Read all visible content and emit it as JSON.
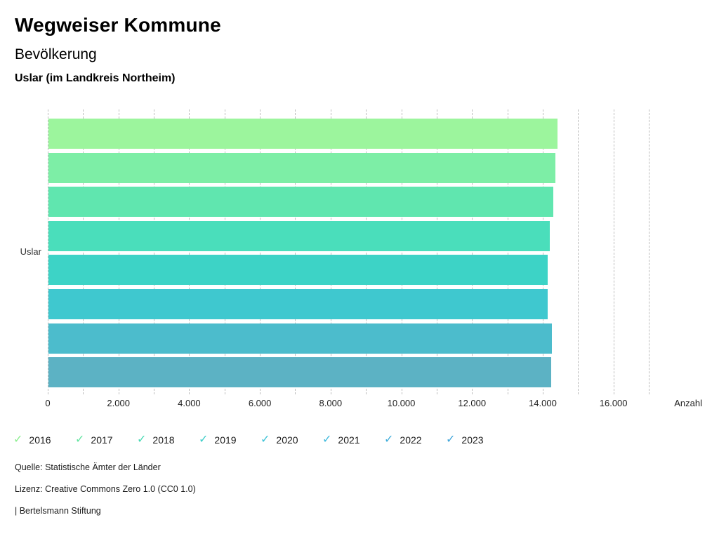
{
  "header": {
    "title": "Wegweiser Kommune",
    "subtitle": "Bevölkerung",
    "region": "Uslar (im Landkreis Northeim)"
  },
  "chart_data": {
    "type": "bar",
    "orientation": "horizontal",
    "title": "Bevölkerung",
    "category": "Uslar",
    "series": [
      {
        "name": "2016",
        "value": 14400,
        "bar_color": "#9cf59d",
        "check_color": "#8bee8e"
      },
      {
        "name": "2017",
        "value": 14330,
        "bar_color": "#7deea6",
        "check_color": "#63e4a0"
      },
      {
        "name": "2018",
        "value": 14280,
        "bar_color": "#60e6af",
        "check_color": "#47d9b4"
      },
      {
        "name": "2019",
        "value": 14170,
        "bar_color": "#4adebb",
        "check_color": "#3dcdc8"
      },
      {
        "name": "2020",
        "value": 14130,
        "bar_color": "#3dd3c6",
        "check_color": "#3cc2d6"
      },
      {
        "name": "2021",
        "value": 14130,
        "bar_color": "#3fc8cf",
        "check_color": "#3db9dc"
      },
      {
        "name": "2022",
        "value": 14230,
        "bar_color": "#4cbccc",
        "check_color": "#3fadda"
      },
      {
        "name": "2023",
        "value": 14220,
        "bar_color": "#5cb2c4",
        "check_color": "#41a6da"
      }
    ],
    "xlabel": "Anzahl",
    "x_ticks": [
      "0",
      "2.000",
      "4.000",
      "6.000",
      "8.000",
      "10.000",
      "12.000",
      "14.000",
      "16.000"
    ],
    "x_tick_values": [
      0,
      2000,
      4000,
      6000,
      8000,
      10000,
      12000,
      14000,
      16000
    ],
    "xlim": [
      0,
      17000
    ],
    "gridline_step": 1000,
    "grid_on": true,
    "grid_color": "#bdbdbd",
    "legend_position": "bottom"
  },
  "footer": {
    "source": "Quelle: Statistische Ämter der Länder",
    "license": "Lizenz: Creative Commons Zero 1.0 (CC0 1.0)",
    "attribution": "| Bertelsmann Stiftung"
  }
}
